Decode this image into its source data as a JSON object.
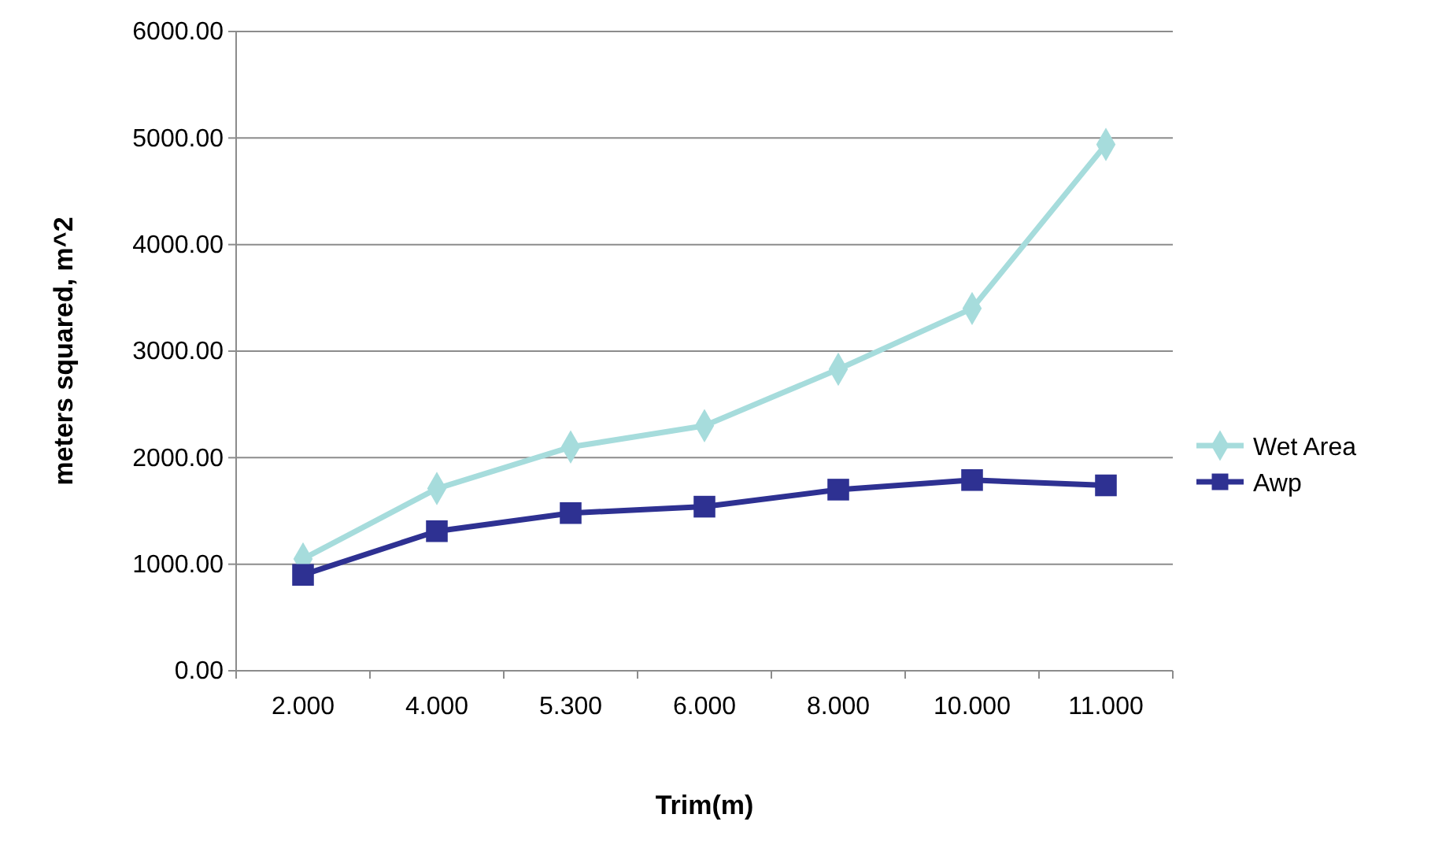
{
  "chart_data": {
    "type": "line",
    "xlabel": "Trim(m)",
    "ylabel": "meters squared, m^2",
    "categories": [
      "2.000",
      "4.000",
      "5.300",
      "6.000",
      "8.000",
      "10.000",
      "11.000"
    ],
    "series": [
      {
        "name": "Wet Area",
        "color": "#a6dcdc",
        "marker": "diamond",
        "values": [
          1050,
          1710,
          2100,
          2300,
          2830,
          3400,
          4940
        ]
      },
      {
        "name": "Awp",
        "color": "#2e3192",
        "marker": "square",
        "values": [
          900,
          1310,
          1480,
          1540,
          1700,
          1790,
          1740
        ]
      }
    ],
    "ylim": [
      0,
      6000
    ],
    "yticks": [
      {
        "value": 0,
        "label": "0.00"
      },
      {
        "value": 1000,
        "label": "1000.00"
      },
      {
        "value": 2000,
        "label": "2000.00"
      },
      {
        "value": 3000,
        "label": "3000.00"
      },
      {
        "value": 4000,
        "label": "4000.00"
      },
      {
        "value": 5000,
        "label": "5000.00"
      },
      {
        "value": 6000,
        "label": "6000.00"
      }
    ],
    "grid": "y",
    "legend": "right"
  }
}
